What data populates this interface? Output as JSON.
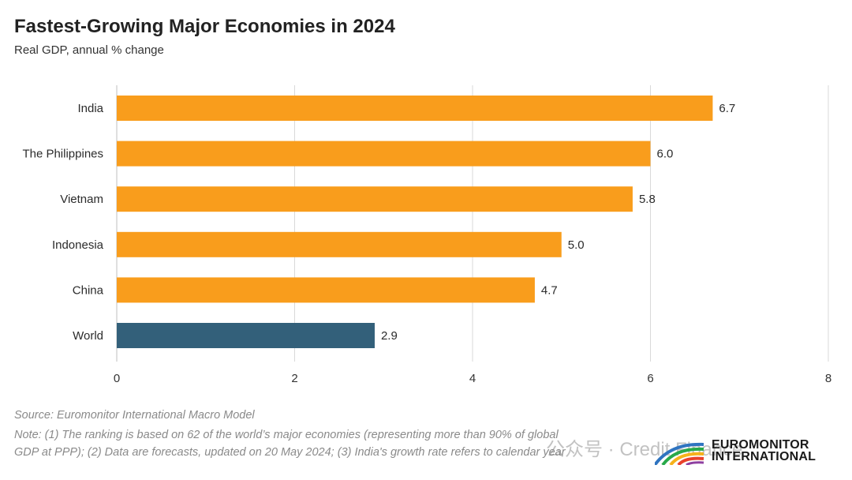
{
  "header": {
    "title": "Fastest-Growing Major Economies in 2024",
    "subtitle": "Real GDP, annual % change"
  },
  "footer": {
    "source": "Source: Euromonitor International Macro Model",
    "note": "Note: (1) The ranking is based on 62 of the world’s major economies (representing more than 90% of global GDP at PPP); (2) Data are forecasts, updated on 20 May 2024; (3) India's growth rate refers to calendar year"
  },
  "logo": {
    "line1": "EUROMONITOR",
    "line2": "INTERNATIONAL"
  },
  "watermark": "公众号 · Credit Finance",
  "colors": {
    "highlight_bar": "#F99D1C",
    "world_bar": "#33607A",
    "gridline": "#d9d9d9",
    "axis": "#bfbfbf",
    "text": "#2b2b2b"
  },
  "chart_data": {
    "type": "bar",
    "orientation": "horizontal",
    "title": "Fastest-Growing Major Economies in 2024",
    "subtitle": "Real GDP, annual % change",
    "categories": [
      "India",
      "The Philippines",
      "Vietnam",
      "Indonesia",
      "China",
      "World"
    ],
    "values": [
      6.7,
      6.0,
      5.8,
      5.0,
      4.7,
      2.9
    ],
    "value_labels": [
      "6.7",
      "6.0",
      "5.8",
      "5.0",
      "4.7",
      "2.9"
    ],
    "bar_colors": [
      "#F99D1C",
      "#F99D1C",
      "#F99D1C",
      "#F99D1C",
      "#F99D1C",
      "#33607A"
    ],
    "xlim": [
      0,
      8
    ],
    "x_ticks": [
      0,
      2,
      4,
      6,
      8
    ],
    "grid": true,
    "legend": "none"
  }
}
